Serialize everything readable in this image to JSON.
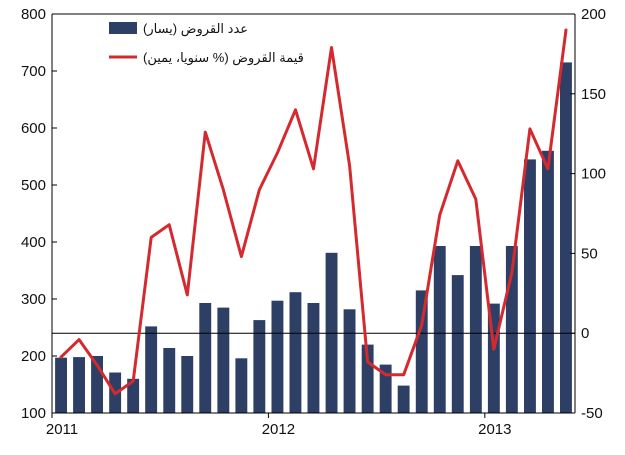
{
  "chart_data": {
    "type": "bar+line",
    "title": "",
    "legend": {
      "placement": "top-center",
      "entries": [
        {
          "label": "عدد القروض (يسار)",
          "marker": "bar"
        },
        {
          "label": "قيمة القروض (% سنويا، يمين)",
          "marker": "line"
        }
      ]
    },
    "x_axis": {
      "tick_labels": [
        "2011",
        "2012",
        "2013"
      ],
      "tick_months": [
        0,
        12,
        24
      ],
      "months_start": "2011-01",
      "n_months": 29
    },
    "y_left": {
      "ylim": [
        100,
        800
      ],
      "ticks": [
        100,
        200,
        300,
        400,
        500,
        600,
        700,
        800
      ],
      "tick_labels": [
        "100",
        "200",
        "300",
        "400",
        "500",
        "600",
        "700",
        "800"
      ]
    },
    "y_right": {
      "ylim": [
        -50,
        200
      ],
      "ticks": [
        -50,
        0,
        50,
        100,
        150,
        200
      ],
      "tick_labels": [
        "-50",
        "0",
        "50",
        "100",
        "150",
        "200"
      ]
    },
    "reference_line": {
      "axis": "right",
      "value": 0
    },
    "grid": false,
    "series": [
      {
        "name": "عدد القروض (يسار)",
        "axis": "left",
        "kind": "bar",
        "color": "#2e3f66",
        "values": [
          197,
          198,
          200,
          171,
          160,
          252,
          214,
          200,
          293,
          285,
          196,
          263,
          297,
          312,
          293,
          381,
          282,
          220,
          185,
          148,
          315,
          393,
          342,
          393,
          292,
          393,
          545,
          560,
          715
        ]
      },
      {
        "name": "قيمة القروض (% سنويا، يمين)",
        "axis": "right",
        "kind": "line",
        "color": "#d42a2f",
        "values": [
          -15,
          -4,
          -20,
          -38,
          -30,
          60,
          68,
          24,
          126,
          90,
          48,
          90,
          113,
          140,
          103,
          179,
          105,
          -18,
          -26,
          -26,
          5,
          74,
          108,
          84,
          -10,
          38,
          128,
          103,
          190
        ]
      }
    ]
  }
}
